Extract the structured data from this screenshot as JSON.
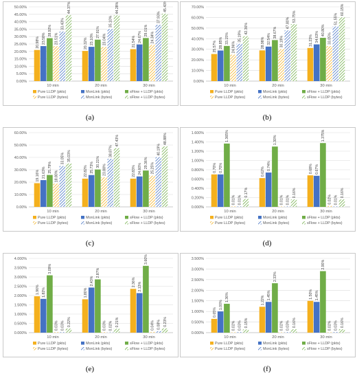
{
  "palette": {
    "pure_pkts": "#f4b01e",
    "monlink_pkts": "#4472c4",
    "sflow_pkts": "#70ad47",
    "pure_bytes": "#f4b01e",
    "monlink_bytes": "#4472c4",
    "sflow_bytes": "#70ad47",
    "grid": "#d9d9d9",
    "axis_text": "#595959"
  },
  "legend": [
    "Pure LLDP (pkts)",
    "MonLink (pkts)",
    "sFlow + LLDP (pkts)",
    "Pure LLDP (bytes)",
    "MonLink (bytes)",
    "sFlow + LLDP (bytes)"
  ],
  "chart_data": [
    {
      "label": "(a)",
      "type": "bar",
      "categories": [
        "10 min",
        "20 min",
        "30 min"
      ],
      "yticks": [
        "0.00%",
        "5.00%",
        "10.00%",
        "15.00%",
        "20.00%",
        "25.00%",
        "30.00%",
        "35.00%",
        "40.00%",
        "45.00%",
        "50.00%"
      ],
      "ylim": [
        0,
        50
      ],
      "series": [
        {
          "name": "Pure LLDP (pkts)",
          "values": [
            20.98,
            20.32,
            21.54
          ],
          "labels": [
            "20.98%",
            "20.32%",
            "21.54%"
          ]
        },
        {
          "name": "MonLink (pkts)",
          "values": [
            23.58,
            23.1,
            24.67
          ],
          "labels": [
            "23.58%",
            "23.10%",
            "24.67%"
          ]
        },
        {
          "name": "sFlow + LLDP (pkts)",
          "values": [
            28.92,
            27.91,
            29.01
          ],
          "labels": [
            "28.92%",
            "27.91%",
            "29.01%"
          ]
        },
        {
          "name": "Pure LLDP (bytes)",
          "values": [
            23.51,
            23.04,
            24.34
          ],
          "labels": [
            "23.51%",
            "23.04%",
            "24.34%"
          ]
        },
        {
          "name": "MonLink (bytes)",
          "values": [
            33.43,
            35.1,
            37.93
          ],
          "labels": [
            "33.43%",
            "35.10%",
            "37.93%"
          ]
        },
        {
          "name": "sFlow + LLDP (bytes)",
          "values": [
            44.37,
            44.28,
            45.43
          ],
          "labels": [
            "44.37%",
            "44.28%",
            "45.43%"
          ]
        }
      ]
    },
    {
      "label": "(b)",
      "type": "bar",
      "categories": [
        "10 min",
        "20 min",
        "30 min"
      ],
      "yticks": [
        "0.00%",
        "10.00%",
        "20.00%",
        "30.00%",
        "40.00%",
        "50.00%",
        "60.00%",
        "70.00%"
      ],
      "ylim": [
        0,
        70
      ],
      "series": [
        {
          "name": "Pure LLDP (pkts)",
          "values": [
            25.57,
            28.98,
            31.23
          ],
          "labels": [
            "25.57%",
            "28.98%",
            "31.23%"
          ]
        },
        {
          "name": "MonLink (pkts)",
          "values": [
            28.85,
            32.54,
            34.63
          ],
          "labels": [
            "28.85%",
            "32.54%",
            "34.63%"
          ]
        },
        {
          "name": "sFlow + LLDP (pkts)",
          "values": [
            33.15,
            38.67,
            40.8
          ],
          "labels": [
            "33.15%",
            "38.67%",
            "40.80%"
          ]
        },
        {
          "name": "Pure LLDP (bytes)",
          "values": [
            24.96,
            30.19,
            33.05
          ],
          "labels": [
            "24.96%",
            "30.19%",
            "33.05%"
          ]
        },
        {
          "name": "MonLink (bytes)",
          "values": [
            35.19,
            47.8,
            51.55
          ],
          "labels": [
            "35.19%",
            "47.80%",
            "51.55%"
          ]
        },
        {
          "name": "sFlow + LLDP (bytes)",
          "values": [
            42.36,
            53.75,
            60.15
          ],
          "labels": [
            "42.36%",
            "53.75%",
            "60.15%"
          ]
        }
      ]
    },
    {
      "label": "(c)",
      "type": "bar",
      "categories": [
        "10 min",
        "20 min",
        "30 min"
      ],
      "yticks": [
        "0.00%",
        "10.00%",
        "20.00%",
        "30.00%",
        "40.00%",
        "50.00%",
        "60.00%"
      ],
      "ylim": [
        0,
        60
      ],
      "series": [
        {
          "name": "Pure LLDP (pkts)",
          "values": [
            19.16,
            22.82,
            22.83
          ],
          "labels": [
            "19.16%",
            "22.82%",
            "22.83%"
          ]
        },
        {
          "name": "MonLink (pkts)",
          "values": [
            21.63,
            25.73,
            24.6
          ],
          "labels": [
            "21.63%",
            "25.73%",
            "24.60%"
          ]
        },
        {
          "name": "sFlow + LLDP (pkts)",
          "values": [
            25.79,
            30.21,
            29.36
          ],
          "labels": [
            "25.79%",
            "30.21%",
            "29.36%"
          ]
        },
        {
          "name": "Pure LLDP (bytes)",
          "values": [
            18.8,
            23.88,
            25.25
          ],
          "labels": [
            "18.80%",
            "23.88%",
            "25.25%"
          ]
        },
        {
          "name": "MonLink (bytes)",
          "values": [
            33.05,
            38.87,
            40.19
          ],
          "labels": [
            "33.05%",
            "38.87%",
            "40.19%"
          ]
        },
        {
          "name": "sFlow + LLDP (bytes)",
          "values": [
            35.03,
            47.43,
            48.88
          ],
          "labels": [
            "35.03%",
            "47.43%",
            "48.88%"
          ]
        }
      ]
    },
    {
      "label": "(d)",
      "type": "bar",
      "categories": [
        "10 min",
        "20 min",
        "30 min"
      ],
      "yticks": [
        "0.000%",
        "0.200%",
        "0.400%",
        "0.600%",
        "0.800%",
        "1.000%",
        "1.200%",
        "1.400%",
        "1.600%"
      ],
      "ylim": [
        0,
        1.6
      ],
      "series": [
        {
          "name": "Pure LLDP (pkts)",
          "values": [
            0.7,
            0.62,
            0.68
          ],
          "labels": [
            "0.70%",
            "0.62%",
            "0.68%"
          ]
        },
        {
          "name": "MonLink (pkts)",
          "values": [
            0.7,
            0.74,
            0.67
          ],
          "labels": [
            "0.70%",
            "0.74%",
            "0.67%"
          ]
        },
        {
          "name": "sFlow + LLDP (pkts)",
          "values": [
            1.365,
            1.3,
            1.375
          ],
          "labels": [
            "1.365%",
            "1.30%",
            "1.375%"
          ]
        },
        {
          "name": "Pure LLDP (bytes)",
          "values": [
            0.01,
            0.01,
            0.02
          ],
          "labels": [
            "0.01%",
            "0.01%",
            "0.02%"
          ]
        },
        {
          "name": "MonLink (bytes)",
          "values": [
            0.01,
            0.01,
            0.01
          ],
          "labels": [
            "0.01%",
            "0.01%",
            "0.01%"
          ]
        },
        {
          "name": "sFlow + LLDP (bytes)",
          "values": [
            0.17,
            0.16,
            0.16
          ],
          "labels": [
            "0.17%",
            "0.16%",
            "0.16%"
          ]
        }
      ]
    },
    {
      "label": "(e)",
      "type": "bar",
      "categories": [
        "10 min",
        "20 min",
        "30 min"
      ],
      "yticks": [
        "0.000%",
        "0.500%",
        "1.000%",
        "1.500%",
        "2.000%",
        "2.500%",
        "3.000%",
        "3.500%",
        "4.000%"
      ],
      "ylim": [
        0,
        4.0
      ],
      "series": [
        {
          "name": "Pure LLDP (pkts)",
          "values": [
            1.96,
            1.8,
            2.36
          ],
          "labels": [
            "1.96%",
            "1.80%",
            "2.36%"
          ]
        },
        {
          "name": "MonLink (pkts)",
          "values": [
            1.82,
            2.43,
            2.13
          ],
          "labels": [
            "1.82%",
            "2.43%",
            "2.13%"
          ]
        },
        {
          "name": "sFlow + LLDP (pkts)",
          "values": [
            3.09,
            2.87,
            3.6
          ],
          "labels": [
            "3.09%",
            "2.87%",
            "3.60%"
          ]
        },
        {
          "name": "Pure LLDP (bytes)",
          "values": [
            0.03,
            0.03,
            0.04
          ],
          "labels": [
            "0.03%",
            "0.03%",
            "0.04%"
          ]
        },
        {
          "name": "MonLink (bytes)",
          "values": [
            0.03,
            0.02,
            0.08
          ],
          "labels": [
            "0.03%",
            "0.02%",
            "0.08%"
          ]
        },
        {
          "name": "sFlow + LLDP (bytes)",
          "values": [
            0.22,
            0.21,
            0.23
          ],
          "labels": [
            "0.22%",
            "0.21%",
            "0.23%"
          ]
        }
      ]
    },
    {
      "label": "(f)",
      "type": "bar",
      "categories": [
        "10 min",
        "20 min",
        "30 min"
      ],
      "yticks": [
        "0.000%",
        "0.500%",
        "1.000%",
        "1.500%",
        "2.000%",
        "2.500%",
        "3.000%",
        "3.500%"
      ],
      "ylim": [
        0,
        3.5
      ],
      "series": [
        {
          "name": "Pure LLDP (pkts)",
          "values": [
            0.65,
            1.22,
            1.5
          ],
          "labels": [
            "0.65%",
            "1.22%",
            "1.50%"
          ]
        },
        {
          "name": "MonLink (pkts)",
          "values": [
            1.0,
            1.45,
            1.45
          ],
          "labels": [
            "1.00%",
            "1.45%",
            "1.45%"
          ]
        },
        {
          "name": "sFlow + LLDP (pkts)",
          "values": [
            1.36,
            2.33,
            2.9
          ],
          "labels": [
            "1.36%",
            "2.33%",
            "2.90%"
          ]
        },
        {
          "name": "Pure LLDP (bytes)",
          "values": [
            0.02,
            0.02,
            0.02
          ],
          "labels": [
            "0.02%",
            "0.02%",
            "0.02%"
          ]
        },
        {
          "name": "MonLink (bytes)",
          "values": [
            0.03,
            0.03,
            0.03
          ],
          "labels": [
            "0.03%",
            "0.03%",
            "0.03%"
          ]
        },
        {
          "name": "sFlow + LLDP (bytes)",
          "values": [
            0.15,
            0.16,
            0.16
          ],
          "labels": [
            "0.15%",
            "0.16%",
            "0.16%"
          ]
        }
      ]
    }
  ]
}
